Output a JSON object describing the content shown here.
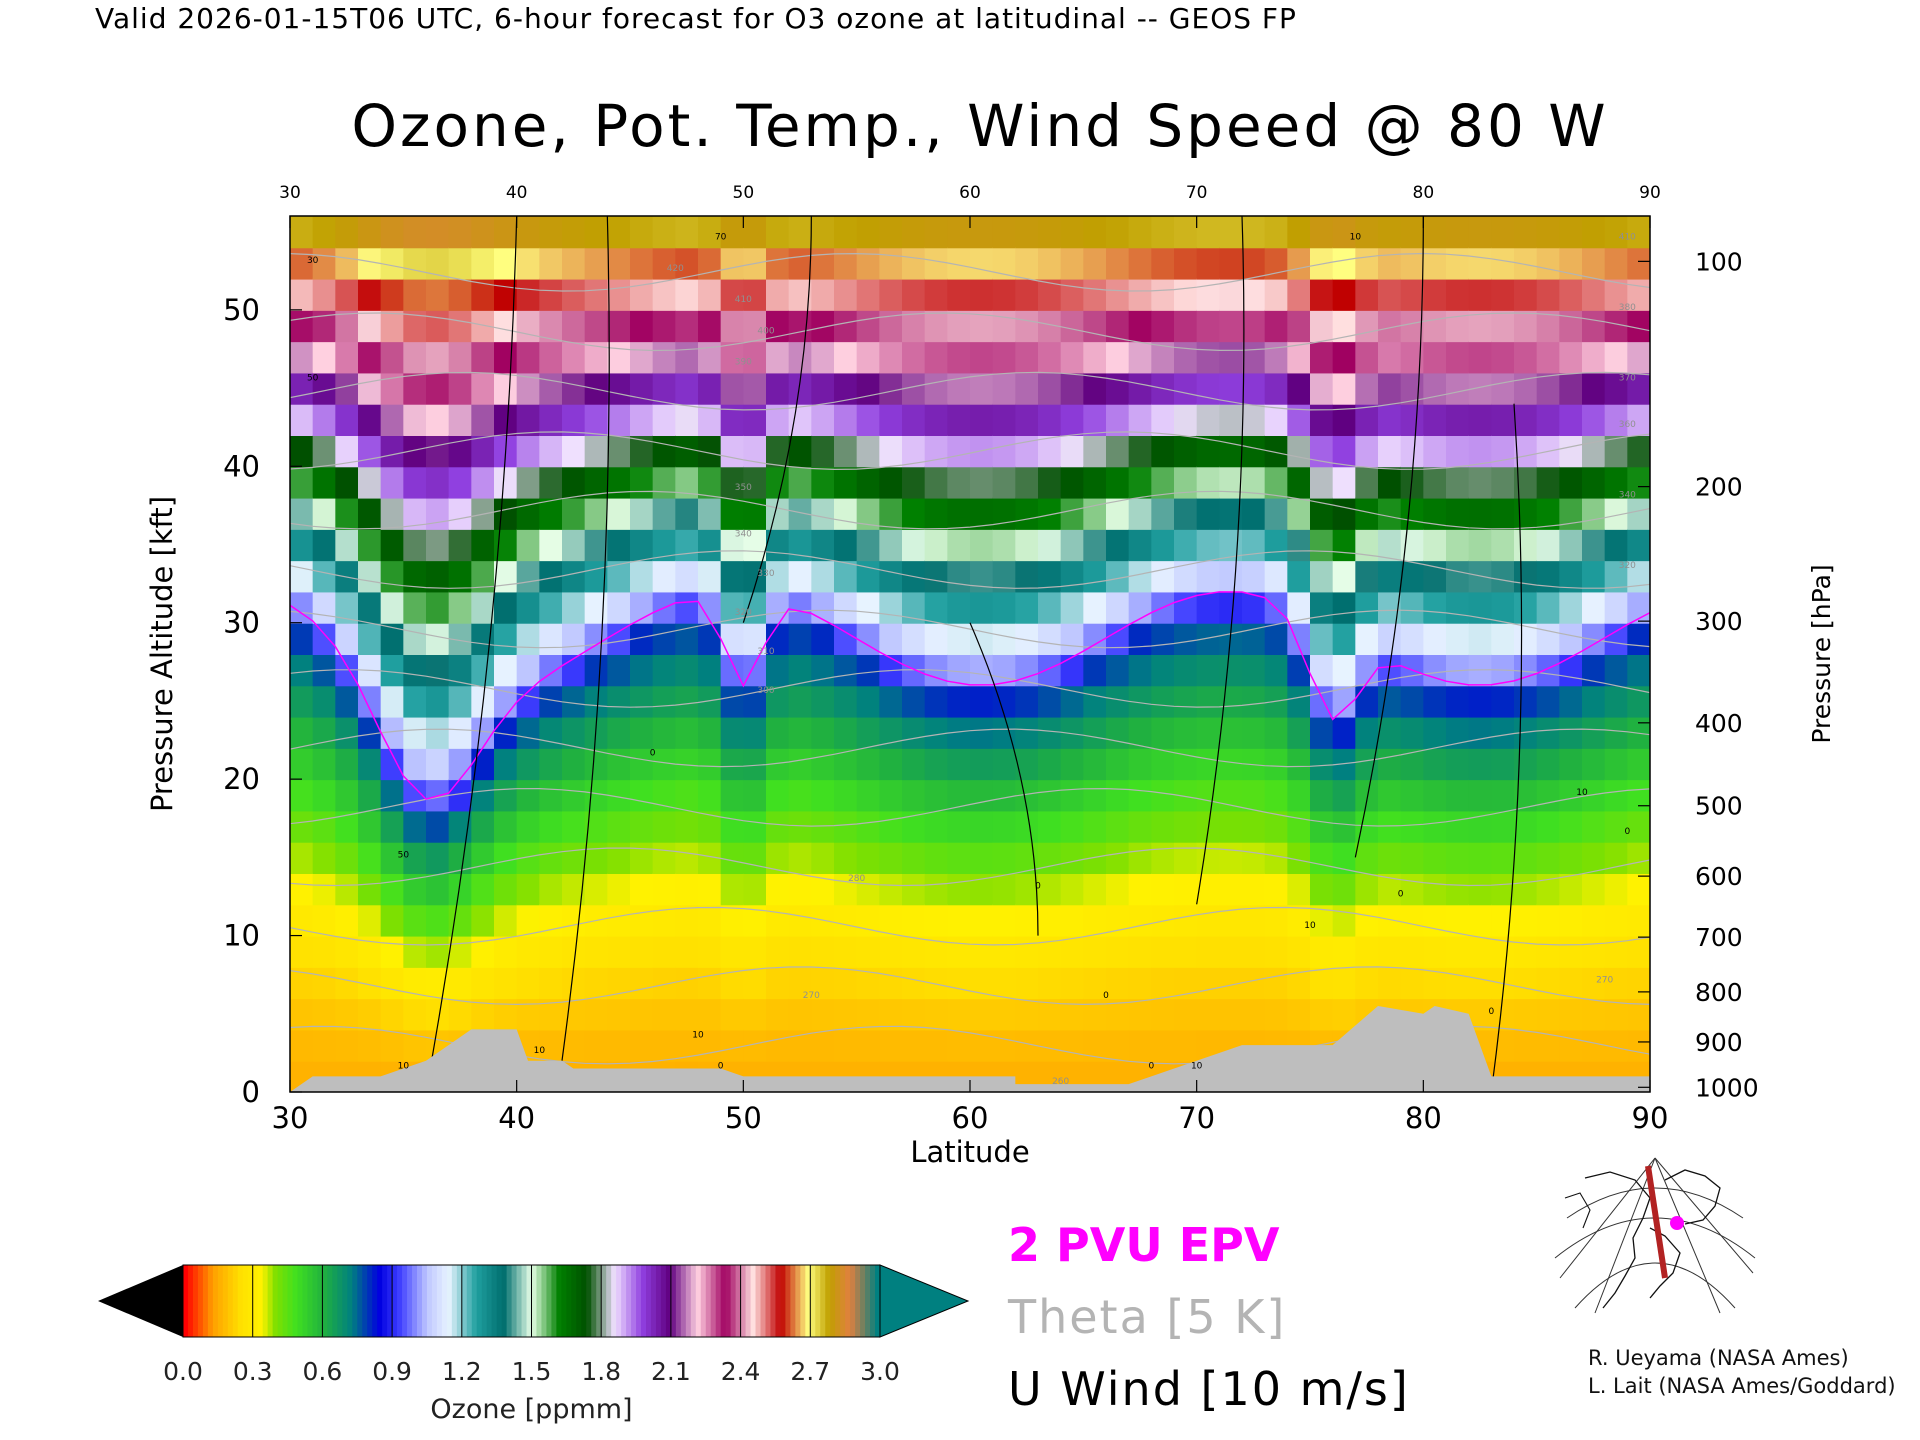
{
  "header": "Valid 2026-01-15T06 UTC, 6-hour forecast for O3 ozone at latitudinal -- GEOS FP",
  "chart_data": {
    "type": "heatmap",
    "title": "Ozone, Pot. Temp., Wind Speed @ 80 W",
    "xlabel": "Latitude",
    "ylabel": "Pressure Altitude [kft]",
    "y2label": "Pressure [hPa]",
    "xlim": [
      30,
      90
    ],
    "ylim": [
      0,
      56
    ],
    "x_ticks": [
      30,
      40,
      50,
      60,
      70,
      80,
      90
    ],
    "y_ticks": [
      0,
      10,
      20,
      30,
      40,
      50
    ],
    "pressure_ticks": [
      {
        "hPa": 100,
        "kft": 53.1
      },
      {
        "hPa": 200,
        "kft": 38.7
      },
      {
        "hPa": 300,
        "kft": 30.1
      },
      {
        "hPa": 400,
        "kft": 23.6
      },
      {
        "hPa": 500,
        "kft": 18.3
      },
      {
        "hPa": 600,
        "kft": 13.8
      },
      {
        "hPa": 700,
        "kft": 9.9
      },
      {
        "hPa": 800,
        "kft": 6.4
      },
      {
        "hPa": 900,
        "kft": 3.2
      },
      {
        "hPa": 1000,
        "kft": 0.3
      }
    ],
    "colorbar": {
      "label": "Ozone [ppmm]",
      "ticks": [
        "0.0",
        "0.3",
        "0.6",
        "0.9",
        "1.2",
        "1.5",
        "1.8",
        "2.1",
        "2.4",
        "2.7",
        "3.0"
      ],
      "min": 0.0,
      "max": 3.0
    },
    "theta_labels": [
      {
        "text": "420",
        "lat": 47,
        "kft": 52.5
      },
      {
        "text": "410",
        "lat": 50,
        "kft": 50.5
      },
      {
        "text": "400",
        "lat": 51,
        "kft": 48.5
      },
      {
        "text": "390",
        "lat": 50,
        "kft": 46.5
      },
      {
        "text": "350",
        "lat": 50,
        "kft": 38.5
      },
      {
        "text": "340",
        "lat": 50,
        "kft": 35.5
      },
      {
        "text": "330",
        "lat": 51,
        "kft": 33.0
      },
      {
        "text": "320",
        "lat": 50,
        "kft": 30.5
      },
      {
        "text": "310",
        "lat": 51,
        "kft": 28.0
      },
      {
        "text": "300",
        "lat": 51,
        "kft": 25.5
      },
      {
        "text": "280",
        "lat": 55,
        "kft": 13.5
      },
      {
        "text": "270",
        "lat": 53,
        "kft": 6.0
      },
      {
        "text": "410",
        "lat": 89,
        "kft": 54.5
      },
      {
        "text": "380",
        "lat": 89,
        "kft": 50.0
      },
      {
        "text": "370",
        "lat": 89,
        "kft": 45.5
      },
      {
        "text": "360",
        "lat": 89,
        "kft": 42.5
      },
      {
        "text": "340",
        "lat": 89,
        "kft": 38.0
      },
      {
        "text": "320",
        "lat": 89,
        "kft": 33.5
      },
      {
        "text": "270",
        "lat": 88,
        "kft": 7.0
      },
      {
        "text": "260",
        "lat": 64,
        "kft": 0.5
      }
    ],
    "wind_labels": [
      {
        "text": "70",
        "lat": 49,
        "kft": 54.5
      },
      {
        "text": "50",
        "lat": 31,
        "kft": 45.5
      },
      {
        "text": "30",
        "lat": 31,
        "kft": 53.0
      },
      {
        "text": "50",
        "lat": 35,
        "kft": 15.0
      },
      {
        "text": "10",
        "lat": 35,
        "kft": 1.5
      },
      {
        "text": "10",
        "lat": 41,
        "kft": 2.5
      },
      {
        "text": "10",
        "lat": 48,
        "kft": 3.5
      },
      {
        "text": "0",
        "lat": 46,
        "kft": 21.5
      },
      {
        "text": "0",
        "lat": 49,
        "kft": 1.5
      },
      {
        "text": "0",
        "lat": 63,
        "kft": 13.0
      },
      {
        "text": "0",
        "lat": 66,
        "kft": 6.0
      },
      {
        "text": "0",
        "lat": 68,
        "kft": 1.5
      },
      {
        "text": "10",
        "lat": 70,
        "kft": 1.5
      },
      {
        "text": "10",
        "lat": 75,
        "kft": 10.5
      },
      {
        "text": "10",
        "lat": 77,
        "kft": 54.5
      },
      {
        "text": "0",
        "lat": 79,
        "kft": 12.5
      },
      {
        "text": "0",
        "lat": 83,
        "kft": 5.0
      },
      {
        "text": "10",
        "lat": 87,
        "kft": 19.0
      },
      {
        "text": "0",
        "lat": 89,
        "kft": 16.5
      }
    ],
    "legend": [
      {
        "label": "2 PVU EPV",
        "color": "#ff00ff"
      },
      {
        "label": "Theta [5 K]",
        "color": "#b4b4b4"
      },
      {
        "label": "U Wind [10 m/s]",
        "color": "#000000"
      }
    ]
  },
  "credits": [
    "R. Ueyama (NASA Ames)",
    "L. Lait (NASA Ames/Goddard)"
  ]
}
